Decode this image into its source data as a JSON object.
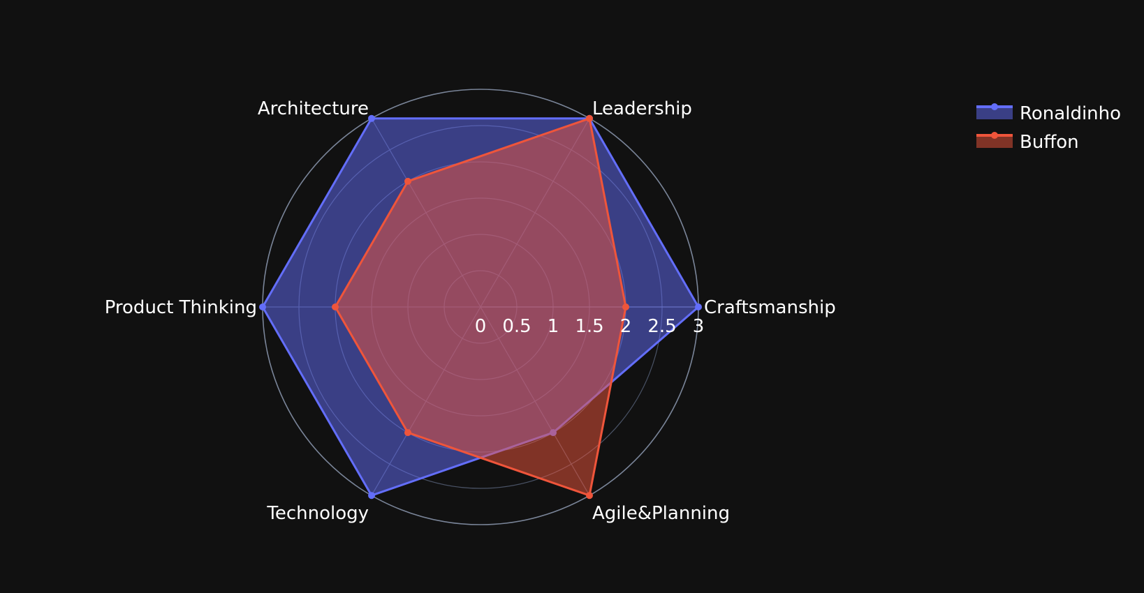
{
  "chart_data": {
    "type": "radar",
    "axes": [
      "Craftsmanship",
      "Leadership",
      "Architecture",
      "Product Thinking",
      "Technology",
      "Agile&Planning"
    ],
    "radial_range": [
      0,
      3
    ],
    "radial_ticks": [
      "0",
      "0.5",
      "1",
      "1.5",
      "2",
      "2.5",
      "3"
    ],
    "legend_position": "top-right",
    "series": [
      {
        "name": "Ronaldinho",
        "values": [
          3,
          3,
          3,
          3,
          3,
          2
        ],
        "color": "#636EFA"
      },
      {
        "name": "Buffon",
        "values": [
          2,
          3,
          2,
          2,
          2,
          3
        ],
        "color": "#EF553B"
      }
    ]
  }
}
